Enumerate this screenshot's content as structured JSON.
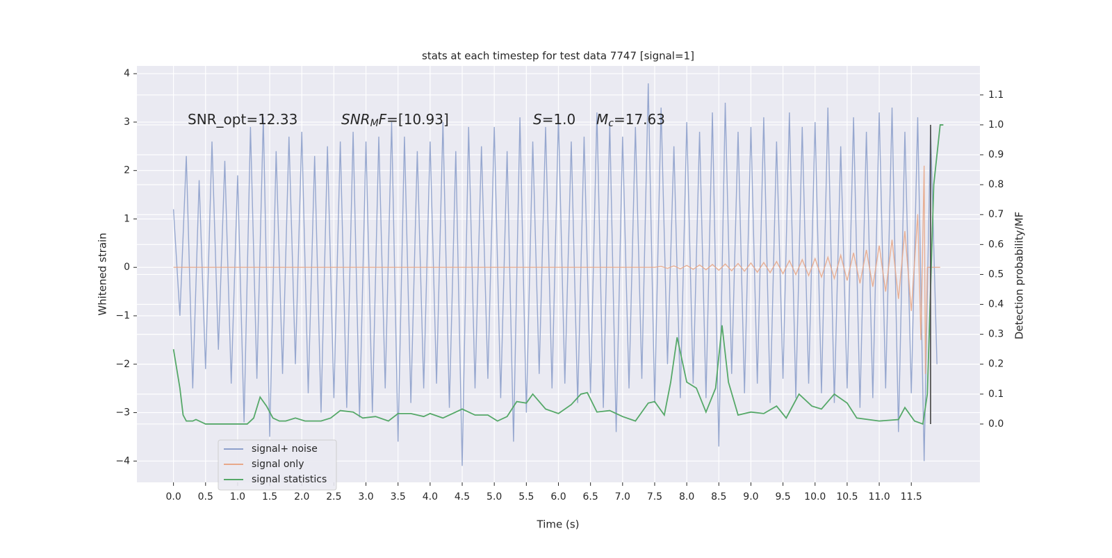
{
  "chart_data": {
    "type": "line",
    "title": "stats at each timestep for test data 7747 [signal=1]",
    "xlabel": "Time (s)",
    "ylabel": "Whitened strain",
    "y2label": "Detection probability/MF",
    "annotations": [
      [
        {
          "text": "SNR_opt=12.33",
          "style": "normal"
        }
      ],
      [
        {
          "text": "SNR",
          "style": "italic"
        },
        {
          "text": "M",
          "style": "sub"
        },
        {
          "text": "F",
          "style": "italic"
        },
        {
          "text": "=[10.93]",
          "style": "normal"
        }
      ],
      [
        {
          "text": "S",
          "style": "italic"
        },
        {
          "text": "=1.0",
          "style": "normal"
        }
      ],
      [
        {
          "text": "M",
          "style": "italic"
        },
        {
          "text": "c",
          "style": "sub"
        },
        {
          "text": "=17.63",
          "style": "normal"
        }
      ]
    ],
    "xlim": [
      -0.57,
      12.57
    ],
    "ylim": [
      -4.44,
      4.16
    ],
    "y2lim": [
      -0.195,
      1.197
    ],
    "xticks": [
      {
        "value": 0,
        "label": "0.0"
      },
      0.5,
      {
        "value": 1,
        "label": "1.0"
      },
      1.5,
      {
        "value": 2,
        "label": "2.0"
      },
      2.5,
      {
        "value": 3,
        "label": "3.0"
      },
      3.5,
      {
        "value": 4,
        "label": "4.0"
      },
      4.5,
      {
        "value": 5,
        "label": "5.0"
      },
      5.5,
      {
        "value": 6,
        "label": "6.0"
      },
      6.5,
      {
        "value": 7,
        "label": "7.0"
      },
      7.5,
      {
        "value": 8,
        "label": "8.0"
      },
      8.5,
      {
        "value": 9,
        "label": "9.0"
      },
      9.5,
      {
        "value": 10,
        "label": "10.0"
      },
      10.5,
      {
        "value": 11,
        "label": "11.0"
      },
      11.5
    ],
    "yticks": [
      {
        "value": -4,
        "label": "−4"
      },
      {
        "value": -3,
        "label": "−3"
      },
      {
        "value": -2,
        "label": "−2"
      },
      {
        "value": -1,
        "label": "−1"
      },
      0,
      1,
      2,
      3,
      4
    ],
    "y2ticks": [
      {
        "value": 0,
        "label": "0.0"
      },
      0.1,
      0.2,
      0.3,
      0.4,
      0.5,
      0.6,
      0.7,
      0.8,
      0.9,
      {
        "value": 1,
        "label": "1.0"
      },
      1.1
    ],
    "grid": true,
    "legend_loc": "lower left",
    "vline_x": 11.8,
    "vline_color": "#555555",
    "series": [
      {
        "name": "signal+ noise",
        "color": "#8da0cb",
        "x": [
          0,
          0.1,
          0.2,
          0.3,
          0.4,
          0.5,
          0.6,
          0.7,
          0.8,
          0.9,
          1,
          1.1,
          1.2,
          1.3,
          1.4,
          1.5,
          1.6,
          1.7,
          1.8,
          1.9,
          2,
          2.1,
          2.2,
          2.3,
          2.4,
          2.5,
          2.6,
          2.7,
          2.8,
          2.9,
          3,
          3.1,
          3.2,
          3.3,
          3.4,
          3.5,
          3.6,
          3.7,
          3.8,
          3.9,
          4,
          4.1,
          4.2,
          4.3,
          4.4,
          4.5,
          4.6,
          4.7,
          4.8,
          4.9,
          5,
          5.1,
          5.2,
          5.3,
          5.4,
          5.5,
          5.6,
          5.7,
          5.8,
          5.9,
          6,
          6.1,
          6.2,
          6.3,
          6.4,
          6.5,
          6.6,
          6.7,
          6.8,
          6.9,
          7,
          7.1,
          7.2,
          7.3,
          7.4,
          7.5,
          7.6,
          7.7,
          7.8,
          7.9,
          8,
          8.1,
          8.2,
          8.3,
          8.4,
          8.5,
          8.6,
          8.7,
          8.8,
          8.9,
          9,
          9.1,
          9.2,
          9.3,
          9.4,
          9.5,
          9.6,
          9.7,
          9.8,
          9.9,
          10,
          10.1,
          10.2,
          10.3,
          10.4,
          10.5,
          10.6,
          10.7,
          10.8,
          10.9,
          11,
          11.1,
          11.2,
          11.3,
          11.4,
          11.5,
          11.6,
          11.7,
          11.8,
          11.9
        ],
        "values": [
          1.2,
          -1.0,
          2.3,
          -2.5,
          1.8,
          -2.1,
          2.6,
          -1.7,
          2.2,
          -2.4,
          1.9,
          -3.2,
          2.9,
          -2.3,
          3.1,
          -3.5,
          2.4,
          -2.2,
          2.7,
          -2.0,
          2.8,
          -2.6,
          2.3,
          -3.0,
          2.5,
          -2.7,
          2.6,
          -2.9,
          2.8,
          -3.1,
          2.6,
          -3.0,
          2.7,
          -2.5,
          3.0,
          -3.6,
          2.7,
          -2.8,
          2.4,
          -2.5,
          2.6,
          -2.4,
          3.0,
          -2.9,
          2.4,
          -4.1,
          2.9,
          -2.5,
          2.5,
          -2.3,
          2.9,
          -2.7,
          2.4,
          -3.6,
          3.1,
          -3.0,
          2.6,
          -2.2,
          2.9,
          -2.5,
          3.1,
          -2.4,
          2.6,
          -2.8,
          2.7,
          -2.6,
          3.2,
          -2.9,
          3.0,
          -3.4,
          2.7,
          -2.5,
          2.9,
          -2.3,
          3.8,
          -2.8,
          3.3,
          -2.0,
          2.5,
          -2.7,
          3.0,
          -2.4,
          2.8,
          -2.7,
          3.2,
          -3.7,
          3.4,
          -2.2,
          2.8,
          -2.6,
          2.9,
          -2.4,
          3.1,
          -2.8,
          2.6,
          -2.3,
          3.2,
          -2.7,
          2.9,
          -2.4,
          3.0,
          -2.6,
          3.3,
          -2.8,
          2.5,
          -2.5,
          3.1,
          -2.9,
          2.8,
          -2.7,
          3.2,
          -2.5,
          3.3,
          -3.4,
          2.8,
          -2.6,
          3.1,
          -4.0,
          2.9,
          -2.0
        ]
      },
      {
        "name": "signal only",
        "color": "#e8a88a",
        "x": [
          0,
          7.5,
          7.6,
          7.7,
          7.8,
          7.9,
          8,
          8.1,
          8.2,
          8.3,
          8.4,
          8.5,
          8.6,
          8.7,
          8.8,
          8.9,
          9,
          9.1,
          9.2,
          9.3,
          9.4,
          9.5,
          9.6,
          9.7,
          9.8,
          9.9,
          10,
          10.1,
          10.2,
          10.3,
          10.4,
          10.5,
          10.6,
          10.7,
          10.8,
          10.9,
          11,
          11.1,
          11.2,
          11.3,
          11.4,
          11.5,
          11.6,
          11.65,
          11.7,
          11.72,
          11.75,
          11.95
        ],
        "values": [
          0,
          0,
          0.02,
          -0.02,
          0.03,
          -0.03,
          0.04,
          -0.04,
          0.05,
          -0.05,
          0.06,
          -0.06,
          0.07,
          -0.07,
          0.08,
          -0.08,
          0.09,
          -0.1,
          0.1,
          -0.11,
          0.12,
          -0.13,
          0.14,
          -0.15,
          0.16,
          -0.17,
          0.18,
          -0.2,
          0.21,
          -0.23,
          0.25,
          -0.27,
          0.3,
          -0.33,
          0.36,
          -0.4,
          0.45,
          -0.5,
          0.57,
          -0.65,
          0.75,
          -0.9,
          1.1,
          -1.5,
          2.1,
          -2.2,
          0,
          0
        ]
      },
      {
        "name": "signal statistics",
        "color": "#55a868",
        "axis": "y2",
        "x": [
          0,
          0.1,
          0.15,
          0.2,
          0.3,
          0.35,
          0.5,
          0.7,
          1,
          1.15,
          1.25,
          1.35,
          1.45,
          1.55,
          1.65,
          1.75,
          1.9,
          2.05,
          2.3,
          2.45,
          2.6,
          2.8,
          2.95,
          3.15,
          3.35,
          3.5,
          3.7,
          3.9,
          4,
          4.2,
          4.5,
          4.7,
          4.9,
          5.05,
          5.2,
          5.35,
          5.5,
          5.6,
          5.8,
          6,
          6.2,
          6.35,
          6.45,
          6.6,
          6.8,
          7,
          7.2,
          7.4,
          7.5,
          7.65,
          7.75,
          7.85,
          8,
          8.15,
          8.3,
          8.45,
          8.55,
          8.65,
          8.8,
          9,
          9.2,
          9.4,
          9.55,
          9.75,
          9.95,
          10.1,
          10.3,
          10.5,
          10.65,
          11,
          11.3,
          11.4,
          11.55,
          11.68,
          11.75,
          11.85,
          11.95,
          12
        ],
        "values": [
          0.25,
          0.12,
          0.03,
          0.01,
          0.01,
          0.015,
          0,
          0,
          0,
          0,
          0.02,
          0.09,
          0.06,
          0.02,
          0.01,
          0.01,
          0.02,
          0.01,
          0.01,
          0.02,
          0.045,
          0.04,
          0.02,
          0.025,
          0.01,
          0.035,
          0.035,
          0.025,
          0.035,
          0.02,
          0.05,
          0.03,
          0.03,
          0.01,
          0.025,
          0.075,
          0.07,
          0.1,
          0.05,
          0.035,
          0.065,
          0.1,
          0.105,
          0.04,
          0.045,
          0.025,
          0.01,
          0.07,
          0.075,
          0.03,
          0.14,
          0.29,
          0.14,
          0.12,
          0.04,
          0.12,
          0.33,
          0.14,
          0.03,
          0.04,
          0.035,
          0.06,
          0.02,
          0.1,
          0.06,
          0.05,
          0.1,
          0.07,
          0.02,
          0.01,
          0.015,
          0.055,
          0.01,
          0,
          0.1,
          0.8,
          1.0,
          1.0
        ]
      }
    ]
  }
}
